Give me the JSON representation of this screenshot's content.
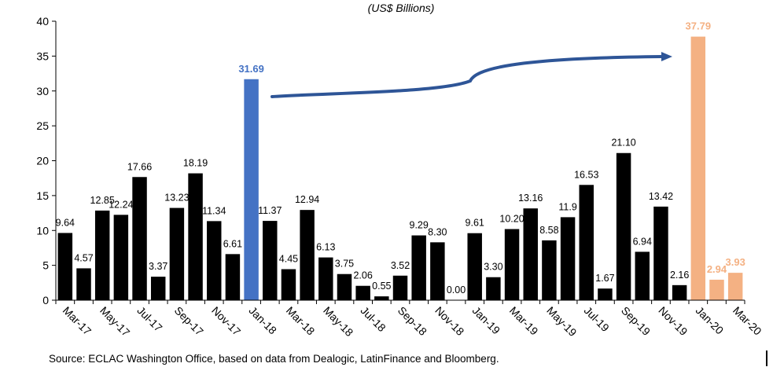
{
  "chart_data": {
    "type": "bar",
    "subtitle": "(US$ Billions)",
    "source": "Source: ECLAC Washington Office, based on data from Dealogic, LatinFinance and Bloomberg.",
    "ylim": [
      0,
      40
    ],
    "yticks": [
      0,
      5,
      10,
      15,
      20,
      25,
      30,
      35,
      40
    ],
    "xtick_labels": [
      "Mar-17",
      "May-17",
      "Jul-17",
      "Sep-17",
      "Nov-17",
      "Jan-18",
      "Mar-18",
      "May-18",
      "Jul-18",
      "Sep-18",
      "Nov-18",
      "Jan-19",
      "Mar-19",
      "May-19",
      "Jul-19",
      "Sep-19",
      "Nov-19",
      "Jan-20",
      "Mar-20"
    ],
    "values": [
      9.64,
      4.57,
      12.85,
      12.24,
      17.66,
      3.37,
      13.23,
      18.19,
      11.34,
      6.61,
      31.69,
      11.37,
      4.45,
      12.94,
      6.13,
      3.75,
      2.06,
      0.55,
      3.52,
      9.29,
      8.3,
      0.0,
      9.61,
      3.3,
      10.2,
      13.16,
      8.58,
      11.9,
      16.53,
      1.67,
      21.1,
      6.94,
      13.42,
      2.16,
      37.79,
      2.94,
      3.93
    ],
    "labels": [
      "9.64",
      "4.57",
      "12.85",
      "12.24",
      "17.66",
      "3.37",
      "13.23",
      "18.19",
      "11.34",
      "6.61",
      "31.69",
      "11.37",
      "4.45",
      "12.94",
      "6.13",
      "3.75",
      "2.06",
      "0.55",
      "3.52",
      "9.29",
      "8.30",
      "0.00",
      "9.61",
      "3.30",
      "10.20",
      "13.16",
      "8.58",
      "11.9",
      "16.53",
      "1.67",
      "21.10",
      "6.94",
      "13.42",
      "2.16",
      "37.79",
      "2.94",
      "3.93"
    ],
    "highlight_blue_index": 10,
    "highlight_orange_indices": [
      34,
      35,
      36
    ],
    "colors": {
      "default": "#000000",
      "blue": "#4472C4",
      "orange": "#F4B183",
      "axis": "#000000",
      "arrow": "#2E5597"
    }
  }
}
